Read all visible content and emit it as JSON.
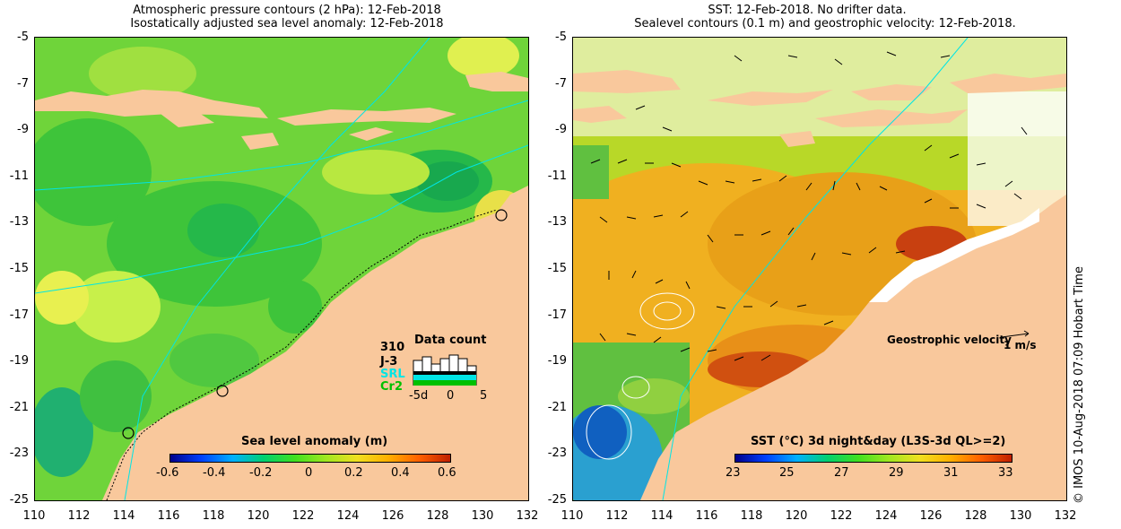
{
  "left_panel": {
    "title_line1": "Atmospheric pressure contours (2 hPa): 12-Feb-2018",
    "title_line2": "Isostatically adjusted sea level anomaly: 12-Feb-2018",
    "colorbar": {
      "label": "Sea level anomaly (m)",
      "ticks": [
        "-0.6",
        "-0.4",
        "-0.2",
        "0",
        "0.2",
        "0.4",
        "0.6"
      ]
    },
    "data_count": {
      "title": "Data count",
      "missions": [
        "310",
        "J-3",
        "SRL",
        "Cr2"
      ],
      "mission_colors": [
        "#000000",
        "#000000",
        "#00e5e5",
        "#00c000"
      ],
      "axis_ticks": [
        "-5d",
        "0",
        "5"
      ]
    }
  },
  "right_panel": {
    "title_line1": "SST: 12-Feb-2018. No drifter data.",
    "title_line2": "Sealevel contours (0.1 m) and geostrophic velocity: 12-Feb-2018.",
    "colorbar": {
      "label": "SST (°C) 3d night&day (L3S-3d QL>=2)",
      "ticks": [
        "23",
        "25",
        "27",
        "29",
        "31",
        "33"
      ]
    },
    "velocity_legend": {
      "label": "Geostrophic velocity",
      "scale": "1 m/s"
    }
  },
  "axes": {
    "y_ticks": [
      "-5",
      "-7",
      "-9",
      "-11",
      "-13",
      "-15",
      "-17",
      "-19",
      "-21",
      "-23",
      "-25"
    ],
    "x_ticks": [
      "110",
      "112",
      "114",
      "116",
      "118",
      "120",
      "122",
      "124",
      "126",
      "128",
      "130",
      "132"
    ]
  },
  "credit": "© IMOS 10-Aug-2018 07:09 Hobart Time",
  "colors": {
    "land": "#f9c89c",
    "sla_background": "#6fd43a",
    "sst_background": "#f0b020",
    "missing_data": "#ffffff"
  }
}
